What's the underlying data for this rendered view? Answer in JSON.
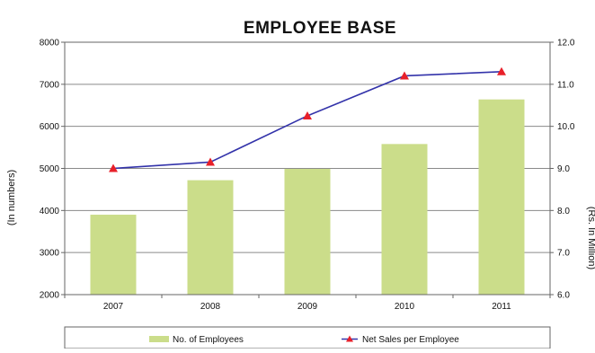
{
  "chart_data": {
    "type": "bar",
    "title": "EMPLOYEE BASE",
    "categories": [
      "2007",
      "2008",
      "2009",
      "2010",
      "2011"
    ],
    "series": [
      {
        "name": "No. of Employees",
        "type": "bar",
        "axis": "left",
        "color": "#cbdd8a",
        "values": [
          3900,
          4720,
          4990,
          5580,
          6640
        ]
      },
      {
        "name": "Net Sales per Employee",
        "type": "line",
        "axis": "right",
        "color": "#3333aa",
        "marker_color": "#e8202a",
        "values": [
          9.0,
          9.15,
          10.25,
          11.2,
          11.3
        ]
      }
    ],
    "y_left": {
      "label": "(In numbers)",
      "ylim": [
        2000,
        8000
      ],
      "ticks": [
        "2000",
        "3000",
        "4000",
        "5000",
        "6000",
        "7000",
        "8000"
      ]
    },
    "y_right": {
      "label": "(Rs. In Million)",
      "ylim": [
        6.0,
        12.0
      ],
      "ticks": [
        "6.0",
        "7.0",
        "8.0",
        "9.0",
        "10.0",
        "11.0",
        "12.0"
      ]
    },
    "grid": "horizontal",
    "legend_position": "bottom"
  }
}
